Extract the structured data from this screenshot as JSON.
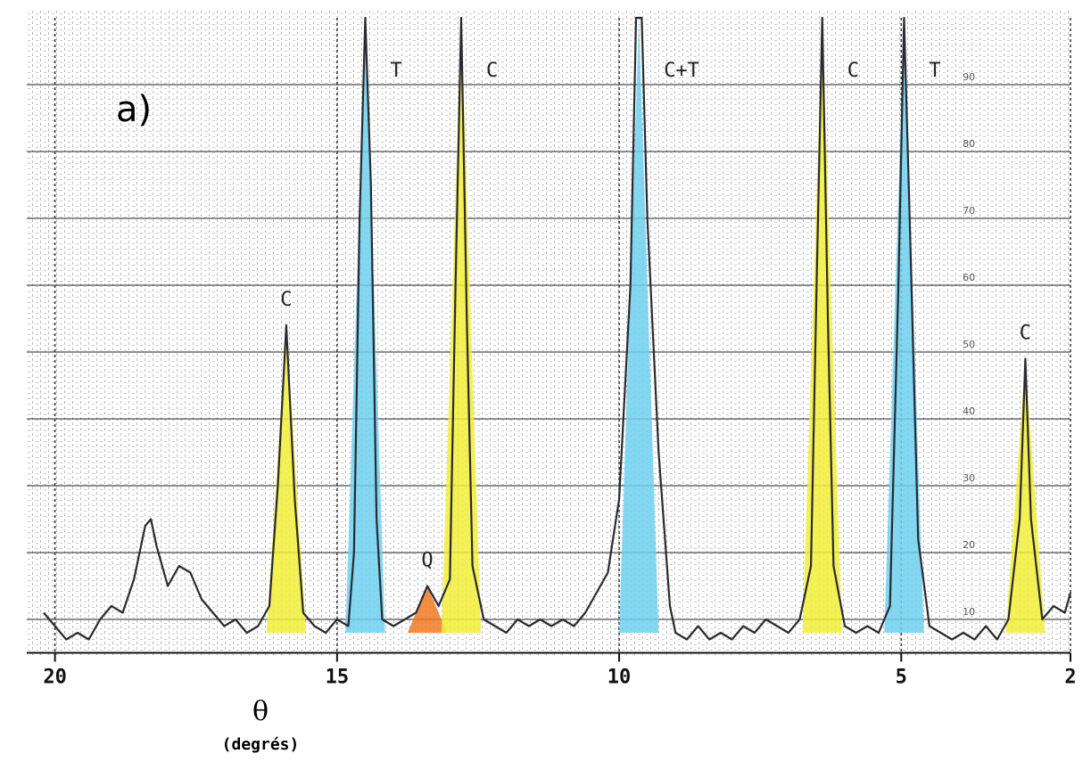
{
  "chart_data": {
    "type": "line",
    "panel_label": "a)",
    "x_label": "θ",
    "x_unit": "(degrés)",
    "x": [
      20.2,
      20.0,
      19.8,
      19.6,
      19.4,
      19.2,
      19.0,
      18.8,
      18.6,
      18.4,
      18.3,
      18.2,
      18.0,
      17.8,
      17.6,
      17.4,
      17.2,
      17.0,
      16.8,
      16.6,
      16.4,
      16.2,
      16.05,
      15.9,
      15.75,
      15.6,
      15.4,
      15.2,
      15.0,
      14.8,
      14.7,
      14.6,
      14.5,
      14.4,
      14.3,
      14.2,
      14.0,
      13.8,
      13.6,
      13.4,
      13.2,
      13.0,
      12.9,
      12.8,
      12.7,
      12.6,
      12.4,
      12.2,
      12.0,
      11.8,
      11.6,
      11.4,
      11.2,
      11.0,
      10.8,
      10.6,
      10.4,
      10.2,
      10.0,
      9.8,
      9.7,
      9.6,
      9.5,
      9.3,
      9.1,
      9.0,
      8.8,
      8.6,
      8.4,
      8.2,
      8.0,
      7.8,
      7.6,
      7.4,
      7.2,
      7.0,
      6.8,
      6.6,
      6.5,
      6.4,
      6.3,
      6.2,
      6.0,
      5.8,
      5.6,
      5.4,
      5.2,
      5.05,
      4.95,
      4.85,
      4.7,
      4.5,
      4.3,
      4.1,
      3.9,
      3.7,
      3.5,
      3.3,
      3.1,
      2.9,
      2.8,
      2.7,
      2.5,
      2.3,
      2.1,
      2.0
    ],
    "series": [
      {
        "color": "#2a2a30",
        "values": [
          11,
          9,
          7,
          8,
          7,
          10,
          12,
          11,
          16,
          24,
          25,
          21,
          15,
          18,
          17,
          13,
          11,
          9,
          10,
          8,
          9,
          12,
          30,
          54,
          28,
          11,
          9,
          8,
          10,
          9,
          20,
          70,
          100,
          75,
          25,
          10,
          9,
          10,
          11,
          15,
          12,
          16,
          60,
          100,
          55,
          18,
          10,
          9,
          8,
          10,
          9,
          10,
          9,
          10,
          9,
          11,
          14,
          17,
          28,
          60,
          100,
          100,
          70,
          35,
          12,
          8,
          7,
          9,
          7,
          8,
          7,
          9,
          8,
          10,
          9,
          8,
          10,
          18,
          60,
          100,
          55,
          18,
          9,
          8,
          9,
          8,
          12,
          60,
          100,
          70,
          22,
          9,
          8,
          7,
          8,
          7,
          9,
          7,
          10,
          25,
          49,
          25,
          10,
          12,
          11,
          14
        ]
      }
    ],
    "peaks": [
      {
        "label": "C",
        "x": 15.9,
        "height": 54,
        "color": "#f2ee3a"
      },
      {
        "label": "T",
        "x": 14.5,
        "height": 100,
        "color": "#6fd0ee"
      },
      {
        "label": "Q",
        "x": 13.4,
        "height": 15,
        "color": "#f07a20"
      },
      {
        "label": "C",
        "x": 12.8,
        "height": 100,
        "color": "#f2ee3a"
      },
      {
        "label": "C+T",
        "x": 9.65,
        "height": 100,
        "color": "#6fd0ee"
      },
      {
        "label": "C",
        "x": 6.4,
        "height": 100,
        "color": "#f2ee3a"
      },
      {
        "label": "T",
        "x": 4.95,
        "height": 100,
        "color": "#6fd0ee"
      },
      {
        "label": "C",
        "x": 2.8,
        "height": 49,
        "color": "#f2ee3a"
      }
    ],
    "xlim": [
      20.5,
      2
    ],
    "xticks": [
      20,
      15,
      10,
      5,
      2
    ],
    "ylim": [
      5,
      100
    ],
    "yticks": [
      10,
      20,
      30,
      40,
      50,
      60,
      70,
      80,
      90
    ],
    "grid": true
  }
}
